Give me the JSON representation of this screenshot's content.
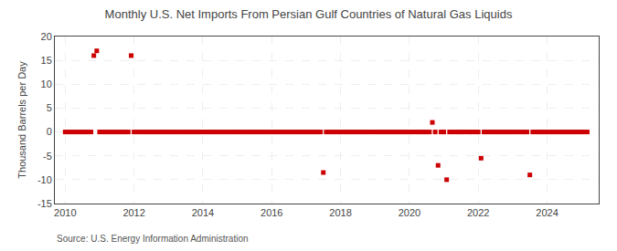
{
  "chart_data": {
    "type": "scatter",
    "title": "Monthly U.S. Net Imports From Persian Gulf Countries of Natural Gas Liquids",
    "ylabel": "Thousand Barrels per Day",
    "annotations": [
      "Source: U.S. Energy Information Administration"
    ],
    "color": "#cc0000",
    "marker": "square",
    "grid": true,
    "xlim": [
      2009.7,
      2025.5
    ],
    "xticks": [
      2010,
      2012,
      2014,
      2016,
      2018,
      2020,
      2022,
      2024
    ],
    "ylim": [
      -15,
      20
    ],
    "yticks": [
      -15,
      -10,
      -5,
      0,
      5,
      10,
      15,
      20
    ],
    "x": [
      2010.0,
      2010.083,
      2010.167,
      2010.25,
      2010.333,
      2010.417,
      2010.5,
      2010.583,
      2010.667,
      2010.75,
      2010.833,
      2010.917,
      2011.0,
      2011.083,
      2011.167,
      2011.25,
      2011.333,
      2011.417,
      2011.5,
      2011.583,
      2011.667,
      2011.75,
      2011.833,
      2011.917,
      2012.0,
      2012.083,
      2012.167,
      2012.25,
      2012.333,
      2012.417,
      2012.5,
      2012.583,
      2012.667,
      2012.75,
      2012.833,
      2012.917,
      2013.0,
      2013.083,
      2013.167,
      2013.25,
      2013.333,
      2013.417,
      2013.5,
      2013.583,
      2013.667,
      2013.75,
      2013.833,
      2013.917,
      2014.0,
      2014.083,
      2014.167,
      2014.25,
      2014.333,
      2014.417,
      2014.5,
      2014.583,
      2014.667,
      2014.75,
      2014.833,
      2014.917,
      2015.0,
      2015.083,
      2015.167,
      2015.25,
      2015.333,
      2015.417,
      2015.5,
      2015.583,
      2015.667,
      2015.75,
      2015.833,
      2015.917,
      2016.0,
      2016.083,
      2016.167,
      2016.25,
      2016.333,
      2016.417,
      2016.5,
      2016.583,
      2016.667,
      2016.75,
      2016.833,
      2016.917,
      2017.0,
      2017.083,
      2017.167,
      2017.25,
      2017.333,
      2017.417,
      2017.5,
      2017.583,
      2017.667,
      2017.75,
      2017.833,
      2017.917,
      2018.0,
      2018.083,
      2018.167,
      2018.25,
      2018.333,
      2018.417,
      2018.5,
      2018.583,
      2018.667,
      2018.75,
      2018.833,
      2018.917,
      2019.0,
      2019.083,
      2019.167,
      2019.25,
      2019.333,
      2019.417,
      2019.5,
      2019.583,
      2019.667,
      2019.75,
      2019.833,
      2019.917,
      2020.0,
      2020.083,
      2020.167,
      2020.25,
      2020.333,
      2020.417,
      2020.5,
      2020.583,
      2020.667,
      2020.75,
      2020.833,
      2020.917,
      2021.0,
      2021.083,
      2021.167,
      2021.25,
      2021.333,
      2021.417,
      2021.5,
      2021.583,
      2021.667,
      2021.75,
      2021.833,
      2021.917,
      2022.0,
      2022.083,
      2022.167,
      2022.25,
      2022.333,
      2022.417,
      2022.5,
      2022.583,
      2022.667,
      2022.75,
      2022.833,
      2022.917,
      2023.0,
      2023.083,
      2023.167,
      2023.25,
      2023.333,
      2023.417,
      2023.5,
      2023.583,
      2023.667,
      2023.75,
      2023.833,
      2023.917,
      2024.0,
      2024.083,
      2024.167,
      2024.25,
      2024.333,
      2024.417,
      2024.5,
      2024.583,
      2024.667,
      2024.75,
      2024.833,
      2024.917,
      2025.0,
      2025.083,
      2025.167
    ],
    "values": [
      0,
      0,
      0,
      0,
      0,
      0,
      0,
      0,
      0,
      0,
      16,
      17,
      0,
      0,
      0,
      0,
      0,
      0,
      0,
      0,
      0,
      0,
      0,
      16,
      0,
      0,
      0,
      0,
      0,
      0,
      0,
      0,
      0,
      0,
      0,
      0,
      0,
      0,
      0,
      0,
      0,
      0,
      0,
      0,
      0,
      0,
      0,
      0,
      0,
      0,
      0,
      0,
      0,
      0,
      0,
      0,
      0,
      0,
      0,
      0,
      0,
      0,
      0,
      0,
      0,
      0,
      0,
      0,
      0,
      0,
      0,
      0,
      0,
      0,
      0,
      0,
      0,
      0,
      0,
      0,
      0,
      0,
      0,
      0,
      0,
      0,
      0,
      0,
      0,
      0,
      -8.5,
      0,
      0,
      0,
      0,
      0,
      0,
      0,
      0,
      0,
      0,
      0,
      0,
      0,
      0,
      0,
      0,
      0,
      0,
      0,
      0,
      0,
      0,
      0,
      0,
      0,
      0,
      0,
      0,
      0,
      0,
      0,
      0,
      0,
      0,
      0,
      0,
      0,
      2,
      0,
      -7,
      0,
      0,
      -10,
      0,
      0,
      0,
      0,
      0,
      0,
      0,
      0,
      0,
      0,
      0,
      -5.5,
      0,
      0,
      0,
      0,
      0,
      0,
      0,
      0,
      0,
      0,
      0,
      0,
      0,
      0,
      0,
      0,
      -9,
      0,
      0,
      0,
      0,
      0,
      0,
      0,
      0,
      0,
      0,
      0,
      0,
      0,
      0,
      0,
      0,
      0,
      0,
      0,
      0
    ]
  }
}
